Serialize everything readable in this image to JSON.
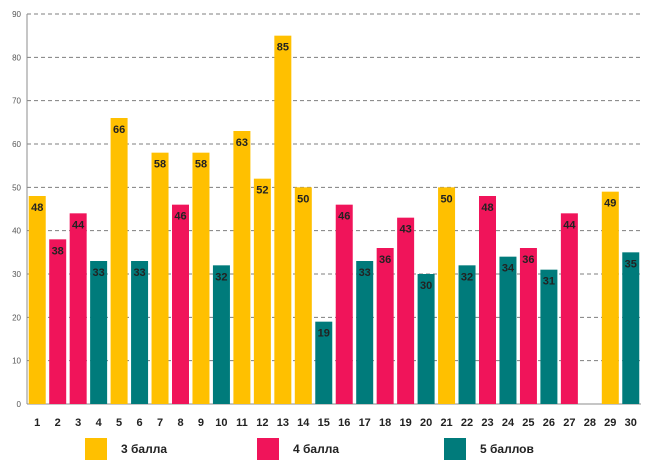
{
  "chart_data": {
    "type": "bar",
    "title": "",
    "xlabel": "",
    "ylabel": "",
    "ylim": [
      0,
      90
    ],
    "ytick_step": 10,
    "grid": true,
    "categories": [
      "1",
      "2",
      "3",
      "4",
      "5",
      "6",
      "7",
      "8",
      "9",
      "10",
      "11",
      "12",
      "13",
      "14",
      "15",
      "16",
      "17",
      "18",
      "19",
      "20",
      "21",
      "22",
      "23",
      "24",
      "25",
      "26",
      "27",
      "28",
      "29",
      "30"
    ],
    "values": [
      48,
      38,
      44,
      33,
      66,
      33,
      58,
      46,
      58,
      32,
      63,
      52,
      85,
      50,
      19,
      46,
      33,
      36,
      43,
      30,
      50,
      32,
      48,
      34,
      36,
      31,
      44,
      null,
      49,
      35
    ],
    "grade": [
      3,
      4,
      4,
      5,
      3,
      5,
      3,
      4,
      3,
      5,
      3,
      3,
      3,
      3,
      5,
      4,
      5,
      4,
      4,
      5,
      3,
      5,
      4,
      5,
      4,
      5,
      4,
      null,
      3,
      5
    ],
    "colors": {
      "3": "#FFC000",
      "4": "#F0145A",
      "5": "#007B7B"
    },
    "legend_position": "bottom",
    "legend": [
      {
        "grade": 3,
        "label": "3 балла"
      },
      {
        "grade": 4,
        "label": "4 балла"
      },
      {
        "grade": 5,
        "label": "5 баллов"
      }
    ]
  }
}
